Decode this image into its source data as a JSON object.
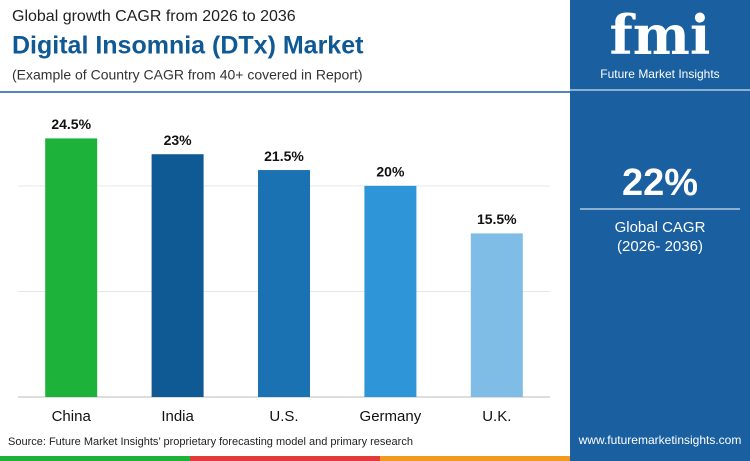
{
  "chart_data": {
    "type": "bar",
    "kicker": "Global growth CAGR from 2026 to 2036",
    "title": "Digital Insomnia (DTx) Market",
    "subtitle": "(Example of Country CAGR from 40+ covered in Report)",
    "categories": [
      "China",
      "India",
      "U.S.",
      "Germany",
      "U.K."
    ],
    "values": [
      24.5,
      23,
      21.5,
      20,
      15.5
    ],
    "value_labels": [
      "24.5%",
      "23%",
      "21.5%",
      "20%",
      "15.5%"
    ],
    "colors": [
      "#1db33a",
      "#0f5a94",
      "#1a72b3",
      "#2e95d8",
      "#7fbce6"
    ],
    "ylim": [
      0,
      27
    ],
    "yticks": [
      0,
      10,
      20
    ],
    "grid": true,
    "source": "Source: Future Market Insights’ proprietary forecasting model and primary research"
  },
  "sidebar": {
    "logo": "fmi",
    "brand": "Future Market Insights",
    "stat": "22%",
    "stat_label": "Global CAGR",
    "stat_period": "(2026- 2036)",
    "website": "www.futuremarketinsights.com"
  }
}
